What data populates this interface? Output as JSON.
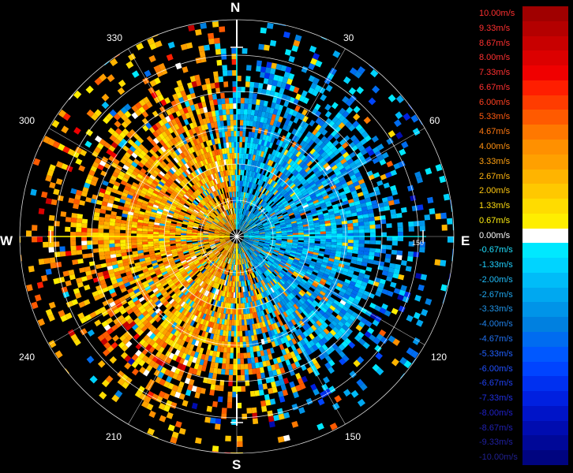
{
  "compass": {
    "north": "N",
    "south": "S",
    "east": "E",
    "west": "W"
  },
  "azimuth_labels": [
    "30",
    "60",
    "120",
    "150",
    "210",
    "240",
    "300",
    "330"
  ],
  "range_labels": [
    "150"
  ],
  "legend": [
    {
      "label": "10.00m/s",
      "color": "#a00000",
      "text": "#ff3030"
    },
    {
      "label": "9.33m/s",
      "color": "#b40000",
      "text": "#ff3030"
    },
    {
      "label": "8.67m/s",
      "color": "#c80000",
      "text": "#ff3030"
    },
    {
      "label": "8.00m/s",
      "color": "#dc0000",
      "text": "#ff3030"
    },
    {
      "label": "7.33m/s",
      "color": "#f00000",
      "text": "#ff3030"
    },
    {
      "label": "6.67m/s",
      "color": "#ff1e00",
      "text": "#ff3030"
    },
    {
      "label": "6.00m/s",
      "color": "#ff3c00",
      "text": "#ff4020"
    },
    {
      "label": "5.33m/s",
      "color": "#ff5a00",
      "text": "#ff5a10"
    },
    {
      "label": "4.67m/s",
      "color": "#ff7800",
      "text": "#ff7810"
    },
    {
      "label": "4.00m/s",
      "color": "#ff9000",
      "text": "#ff9010"
    },
    {
      "label": "3.33m/s",
      "color": "#ffa000",
      "text": "#ffa010"
    },
    {
      "label": "2.67m/s",
      "color": "#ffb400",
      "text": "#ffb410"
    },
    {
      "label": "2.00m/s",
      "color": "#ffc800",
      "text": "#ffc810"
    },
    {
      "label": "1.33m/s",
      "color": "#ffdc00",
      "text": "#ffdc10"
    },
    {
      "label": "0.67m/s",
      "color": "#ffee00",
      "text": "#ffee10"
    },
    {
      "label": "0.00m/s",
      "color": "#ffffff",
      "text": "#ffffff"
    },
    {
      "label": "-0.67m/s",
      "color": "#00e8ff",
      "text": "#20e0ff"
    },
    {
      "label": "-1.33m/s",
      "color": "#00d4ff",
      "text": "#20d0ff"
    },
    {
      "label": "-2.00m/s",
      "color": "#00bcf8",
      "text": "#20bcf8"
    },
    {
      "label": "-2.67m/s",
      "color": "#00a8f0",
      "text": "#20a8f0"
    },
    {
      "label": "-3.33m/s",
      "color": "#0094e8",
      "text": "#2094e8"
    },
    {
      "label": "-4.00m/s",
      "color": "#0080e0",
      "text": "#2080e8"
    },
    {
      "label": "-4.67m/s",
      "color": "#006cf0",
      "text": "#2070f0"
    },
    {
      "label": "-5.33m/s",
      "color": "#0058ff",
      "text": "#2060ff"
    },
    {
      "label": "-6.00m/s",
      "color": "#0044ff",
      "text": "#2050ff"
    },
    {
      "label": "-6.67m/s",
      "color": "#0030f0",
      "text": "#2040f0"
    },
    {
      "label": "-7.33m/s",
      "color": "#0020e0",
      "text": "#2030e0"
    },
    {
      "label": "-8.00m/s",
      "color": "#0014c8",
      "text": "#2020c8"
    },
    {
      "label": "-8.67m/s",
      "color": "#000cb0",
      "text": "#2020b0"
    },
    {
      "label": "-9.33m/s",
      "color": "#000898",
      "text": "#2020a0"
    },
    {
      "label": "-10.00m/s",
      "color": "#000480",
      "text": "#202090"
    }
  ],
  "colors": {
    "background": "#000000",
    "ring": "#ffffff",
    "axis_north_south": "#ffffff",
    "axis_east_west": "#ffffff",
    "axis_north_east": "#00ffff",
    "axis_south_west": "#ffff00"
  }
}
